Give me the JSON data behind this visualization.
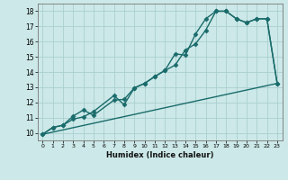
{
  "xlabel": "Humidex (Indice chaleur)",
  "background_color": "#cce8e8",
  "grid_color": "#aacfcf",
  "line_color": "#1a6b6b",
  "xlim": [
    -0.5,
    23.5
  ],
  "ylim": [
    9.5,
    18.5
  ],
  "xticks": [
    0,
    1,
    2,
    3,
    4,
    5,
    6,
    7,
    8,
    9,
    10,
    11,
    12,
    13,
    14,
    15,
    16,
    17,
    18,
    19,
    20,
    21,
    22,
    23
  ],
  "yticks": [
    10,
    11,
    12,
    13,
    14,
    15,
    16,
    17,
    18
  ],
  "curve1_x": [
    0,
    1,
    2,
    3,
    4,
    5,
    7,
    8,
    9,
    10,
    11,
    12,
    13,
    14,
    15,
    16,
    17,
    18,
    19,
    20,
    21,
    22,
    23
  ],
  "curve1_y": [
    9.9,
    10.35,
    10.5,
    10.9,
    11.05,
    11.4,
    12.45,
    11.85,
    12.95,
    13.25,
    13.7,
    14.1,
    14.45,
    15.45,
    15.85,
    16.75,
    18.0,
    18.0,
    17.5,
    17.25,
    17.5,
    17.5,
    13.25
  ],
  "curve2_x": [
    0,
    1,
    2,
    3,
    4,
    5,
    7,
    8,
    9,
    10,
    11,
    12,
    13,
    14,
    15,
    16,
    17,
    18,
    19,
    20,
    21,
    22,
    23
  ],
  "curve2_y": [
    9.9,
    10.35,
    10.5,
    11.1,
    11.5,
    11.15,
    12.15,
    12.2,
    12.95,
    13.25,
    13.7,
    14.1,
    15.2,
    15.1,
    16.5,
    17.5,
    18.0,
    18.0,
    17.5,
    17.25,
    17.5,
    17.5,
    13.25
  ],
  "curve3_x": [
    0,
    23
  ],
  "curve3_y": [
    9.9,
    13.25
  ],
  "marker": "D",
  "markersize": 2.5,
  "linewidth": 1.0
}
